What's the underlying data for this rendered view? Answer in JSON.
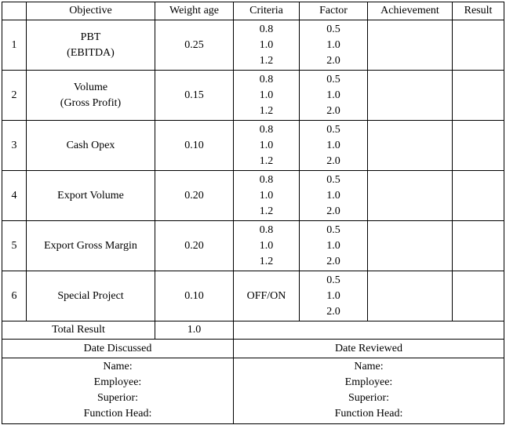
{
  "headers": {
    "number": "",
    "objective": "Objective",
    "weight": "Weight age",
    "criteria": "Criteria",
    "factor": "Factor",
    "achievement": "Achievement",
    "result": "Result"
  },
  "rows": [
    {
      "no": "1",
      "objective": [
        "PBT",
        "(EBITDA)"
      ],
      "weight": "0.25",
      "criteria": [
        "0.8",
        "1.0",
        "1.2"
      ],
      "factor": [
        "0.5",
        "1.0",
        "2.0"
      ],
      "achievement": "",
      "result": ""
    },
    {
      "no": "2",
      "objective": [
        "Volume",
        "(Gross Profit)"
      ],
      "weight": "0.15",
      "criteria": [
        "0.8",
        "1.0",
        "1.2"
      ],
      "factor": [
        "0.5",
        "1.0",
        "2.0"
      ],
      "achievement": "",
      "result": ""
    },
    {
      "no": "3",
      "objective": [
        "Cash Opex"
      ],
      "weight": "0.10",
      "criteria": [
        "0.8",
        "1.0",
        "1.2"
      ],
      "factor": [
        "0.5",
        "1.0",
        "2.0"
      ],
      "achievement": "",
      "result": ""
    },
    {
      "no": "4",
      "objective": [
        "Export Volume"
      ],
      "weight": "0.20",
      "criteria": [
        "0.8",
        "1.0",
        "1.2"
      ],
      "factor": [
        "0.5",
        "1.0",
        "2.0"
      ],
      "achievement": "",
      "result": ""
    },
    {
      "no": "5",
      "objective": [
        "Export Gross Margin"
      ],
      "weight": "0.20",
      "criteria": [
        "0.8",
        "1.0",
        "1.2"
      ],
      "factor": [
        "0.5",
        "1.0",
        "2.0"
      ],
      "achievement": "",
      "result": ""
    },
    {
      "no": "6",
      "objective": [
        "Special Project"
      ],
      "weight": "0.10",
      "criteria": [
        "OFF/ON"
      ],
      "factor": [
        "0.5",
        "1.0",
        "2.0"
      ],
      "achievement": "",
      "result": ""
    }
  ],
  "total": {
    "label": "Total Result",
    "value": "1.0"
  },
  "signoff": {
    "left_title": "Date Discussed",
    "right_title": "Date Reviewed",
    "lines": [
      "Name:",
      "Employee:",
      "Superior:",
      "Function Head:"
    ]
  }
}
